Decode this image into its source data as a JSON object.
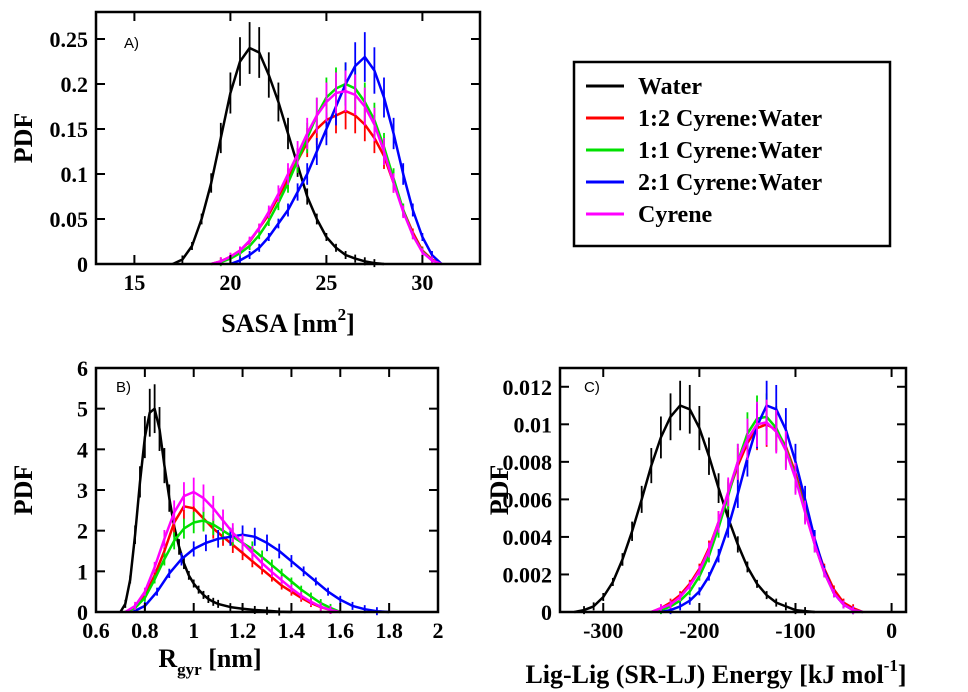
{
  "legend": [
    {
      "label": "Water",
      "color": "#000000"
    },
    {
      "label": "1:2 Cyrene:Water",
      "color": "#ff0000"
    },
    {
      "label": "1:1 Cyrene:Water",
      "color": "#00e000"
    },
    {
      "label": "2:1 Cyrene:Water",
      "color": "#0000ff"
    },
    {
      "label": "Cyrene",
      "color": "#ff00ff"
    }
  ],
  "chart_data": [
    {
      "type": "line",
      "panel_label": "A)",
      "ylabel": "PDF",
      "xlabel": "SASA [nm",
      "xlabel_sup": "2",
      "xlabel_suffix": "]",
      "xlim": [
        13,
        33
      ],
      "ylim": [
        0,
        0.28
      ],
      "xticks": [
        15,
        20,
        25,
        30
      ],
      "xtick_labels": [
        "15",
        "20",
        "25",
        "30"
      ],
      "yticks": [
        0,
        0.05,
        0.1,
        0.15,
        0.2,
        0.25
      ],
      "ytick_labels": [
        "0",
        "0.05",
        "0.1",
        "0.15",
        "0.2",
        "0.25"
      ],
      "series": [
        {
          "name": "Water",
          "color": "#000000",
          "x": [
            17,
            17.5,
            18,
            18.5,
            19,
            19.5,
            20,
            20.5,
            21,
            21.5,
            22,
            22.5,
            23,
            23.5,
            24,
            24.5,
            25,
            25.5,
            26,
            26.5,
            27,
            27.5,
            28
          ],
          "y": [
            0,
            0.005,
            0.02,
            0.05,
            0.09,
            0.14,
            0.19,
            0.225,
            0.24,
            0.235,
            0.21,
            0.18,
            0.145,
            0.11,
            0.075,
            0.05,
            0.03,
            0.018,
            0.01,
            0.006,
            0.003,
            0.001,
            0
          ]
        },
        {
          "name": "1:2 Cyrene:Water",
          "color": "#ff0000",
          "x": [
            19,
            19.5,
            20,
            20.5,
            21,
            21.5,
            22,
            22.5,
            23,
            23.5,
            24,
            24.5,
            25,
            25.5,
            26,
            26.5,
            27,
            27.5,
            28,
            28.5,
            29,
            29.5,
            30,
            30.5,
            31
          ],
          "y": [
            0,
            0.003,
            0.008,
            0.015,
            0.025,
            0.04,
            0.055,
            0.075,
            0.095,
            0.115,
            0.135,
            0.15,
            0.16,
            0.165,
            0.17,
            0.165,
            0.155,
            0.14,
            0.12,
            0.09,
            0.06,
            0.035,
            0.015,
            0.005,
            0
          ]
        },
        {
          "name": "1:1 Cyrene:Water",
          "color": "#00e000",
          "x": [
            19,
            19.5,
            20,
            20.5,
            21,
            21.5,
            22,
            22.5,
            23,
            23.5,
            24,
            24.5,
            25,
            25.5,
            26,
            26.5,
            27,
            27.5,
            28,
            28.5,
            29,
            29.5,
            30,
            30.5,
            31
          ],
          "y": [
            0,
            0.002,
            0.006,
            0.012,
            0.02,
            0.032,
            0.048,
            0.068,
            0.09,
            0.115,
            0.14,
            0.165,
            0.185,
            0.195,
            0.2,
            0.195,
            0.18,
            0.16,
            0.13,
            0.095,
            0.06,
            0.032,
            0.014,
            0.004,
            0
          ]
        },
        {
          "name": "2:1 Cyrene:Water",
          "color": "#0000ff",
          "x": [
            20,
            20.5,
            21,
            21.5,
            22,
            22.5,
            23,
            23.5,
            24,
            24.5,
            25,
            25.5,
            26,
            26.5,
            27,
            27.5,
            28,
            28.5,
            29,
            29.5,
            30,
            30.5,
            31
          ],
          "y": [
            0,
            0.004,
            0.01,
            0.018,
            0.03,
            0.045,
            0.06,
            0.08,
            0.1,
            0.125,
            0.15,
            0.175,
            0.2,
            0.22,
            0.23,
            0.215,
            0.185,
            0.145,
            0.1,
            0.06,
            0.03,
            0.01,
            0
          ]
        },
        {
          "name": "Cyrene",
          "color": "#ff00ff",
          "x": [
            19,
            19.5,
            20,
            20.5,
            21,
            21.5,
            22,
            22.5,
            23,
            23.5,
            24,
            24.5,
            25,
            25.5,
            26,
            26.5,
            27,
            27.5,
            28,
            28.5,
            29,
            29.5,
            30,
            30.5,
            31
          ],
          "y": [
            0,
            0.003,
            0.008,
            0.015,
            0.026,
            0.04,
            0.058,
            0.078,
            0.1,
            0.122,
            0.145,
            0.165,
            0.18,
            0.19,
            0.192,
            0.188,
            0.175,
            0.155,
            0.125,
            0.09,
            0.058,
            0.032,
            0.013,
            0.004,
            0
          ]
        }
      ]
    },
    {
      "type": "line",
      "panel_label": "B)",
      "ylabel": "PDF",
      "xlabel": "R",
      "xlabel_sub": "gyr",
      "xlabel_suffix": " [nm]",
      "xlim": [
        0.6,
        2
      ],
      "ylim": [
        0,
        6
      ],
      "xticks": [
        0.6,
        0.8,
        1.0,
        1.2,
        1.4,
        1.6,
        1.8,
        2.0
      ],
      "xtick_labels": [
        "0.6",
        "0.8",
        "1",
        "1.2",
        "1.4",
        "1.6",
        "1.8",
        "2"
      ],
      "yticks": [
        0,
        1,
        2,
        3,
        4,
        5,
        6
      ],
      "ytick_labels": [
        "0",
        "1",
        "2",
        "3",
        "4",
        "5",
        "6"
      ],
      "series": [
        {
          "name": "Water",
          "color": "#000000",
          "x": [
            0.7,
            0.72,
            0.74,
            0.76,
            0.78,
            0.8,
            0.82,
            0.84,
            0.86,
            0.88,
            0.9,
            0.92,
            0.94,
            0.96,
            0.98,
            1.0,
            1.02,
            1.04,
            1.06,
            1.08,
            1.1,
            1.15,
            1.2,
            1.25,
            1.3,
            1.35,
            1.4
          ],
          "y": [
            0,
            0.2,
            0.8,
            1.9,
            3.2,
            4.3,
            4.9,
            5.0,
            4.5,
            3.6,
            2.8,
            2.1,
            1.6,
            1.2,
            0.9,
            0.7,
            0.55,
            0.42,
            0.32,
            0.25,
            0.2,
            0.12,
            0.08,
            0.05,
            0.03,
            0.01,
            0
          ]
        },
        {
          "name": "1:2 Cyrene:Water",
          "color": "#ff0000",
          "x": [
            0.72,
            0.76,
            0.8,
            0.84,
            0.88,
            0.92,
            0.96,
            1.0,
            1.04,
            1.08,
            1.12,
            1.16,
            1.2,
            1.24,
            1.28,
            1.32,
            1.36,
            1.4,
            1.44,
            1.48,
            1.52,
            1.56,
            1.6
          ],
          "y": [
            0,
            0.1,
            0.4,
            0.9,
            1.5,
            2.2,
            2.6,
            2.55,
            2.3,
            2.05,
            1.85,
            1.65,
            1.45,
            1.25,
            1.05,
            0.85,
            0.65,
            0.5,
            0.35,
            0.22,
            0.12,
            0.05,
            0
          ]
        },
        {
          "name": "1:1 Cyrene:Water",
          "color": "#00e000",
          "x": [
            0.72,
            0.76,
            0.8,
            0.84,
            0.88,
            0.92,
            0.96,
            1.0,
            1.04,
            1.08,
            1.12,
            1.16,
            1.2,
            1.24,
            1.28,
            1.32,
            1.36,
            1.4,
            1.44,
            1.48,
            1.52,
            1.56,
            1.6
          ],
          "y": [
            0,
            0.1,
            0.35,
            0.8,
            1.3,
            1.75,
            2.05,
            2.2,
            2.25,
            2.15,
            2.0,
            1.85,
            1.7,
            1.55,
            1.35,
            1.15,
            0.95,
            0.75,
            0.55,
            0.38,
            0.22,
            0.1,
            0
          ]
        },
        {
          "name": "2:1 Cyrene:Water",
          "color": "#0000ff",
          "x": [
            0.75,
            0.8,
            0.85,
            0.9,
            0.95,
            1.0,
            1.05,
            1.1,
            1.15,
            1.2,
            1.25,
            1.3,
            1.35,
            1.4,
            1.45,
            1.5,
            1.55,
            1.6,
            1.65,
            1.7,
            1.75,
            1.8
          ],
          "y": [
            0,
            0.15,
            0.5,
            0.95,
            1.3,
            1.55,
            1.7,
            1.8,
            1.85,
            1.9,
            1.85,
            1.7,
            1.5,
            1.25,
            1.0,
            0.75,
            0.5,
            0.3,
            0.15,
            0.07,
            0.02,
            0
          ]
        },
        {
          "name": "Cyrene",
          "color": "#ff00ff",
          "x": [
            0.72,
            0.76,
            0.8,
            0.84,
            0.88,
            0.92,
            0.96,
            1.0,
            1.04,
            1.08,
            1.12,
            1.16,
            1.2,
            1.24,
            1.28,
            1.32,
            1.36,
            1.4,
            1.44,
            1.48,
            1.52,
            1.56,
            1.6
          ],
          "y": [
            0,
            0.15,
            0.5,
            1.1,
            1.8,
            2.45,
            2.85,
            2.95,
            2.8,
            2.55,
            2.25,
            1.95,
            1.7,
            1.45,
            1.2,
            0.98,
            0.78,
            0.58,
            0.4,
            0.25,
            0.13,
            0.05,
            0
          ]
        }
      ]
    },
    {
      "type": "line",
      "panel_label": "C)",
      "ylabel": "PDF",
      "xlabel": "Lig-Lig (SR-LJ) Energy [kJ mol",
      "xlabel_sup": "-1",
      "xlabel_suffix": "]",
      "xlim": [
        -345,
        15
      ],
      "ylim": [
        0,
        0.013
      ],
      "xticks": [
        -300,
        -200,
        -100,
        0
      ],
      "xtick_labels": [
        "-300",
        "-200",
        "-100",
        "0"
      ],
      "yticks": [
        0,
        0.002,
        0.004,
        0.006,
        0.008,
        0.01,
        0.012
      ],
      "ytick_labels": [
        "0",
        "0.002",
        "0.004",
        "0.006",
        "0.008",
        "0.01",
        "0.012"
      ],
      "series": [
        {
          "name": "Water",
          "color": "#000000",
          "x": [
            -330,
            -320,
            -310,
            -300,
            -290,
            -280,
            -270,
            -260,
            -250,
            -240,
            -230,
            -220,
            -210,
            -200,
            -190,
            -180,
            -170,
            -160,
            -150,
            -140,
            -130,
            -120,
            -110,
            -100,
            -90,
            -80
          ],
          "y": [
            0,
            0.0001,
            0.0003,
            0.0008,
            0.0016,
            0.0028,
            0.0043,
            0.006,
            0.0078,
            0.0093,
            0.0104,
            0.011,
            0.0108,
            0.0098,
            0.0083,
            0.0066,
            0.005,
            0.0036,
            0.0024,
            0.0015,
            0.0009,
            0.0005,
            0.0003,
            0.0001,
            5e-05,
            0
          ]
        },
        {
          "name": "1:2 Cyrene:Water",
          "color": "#ff0000",
          "x": [
            -250,
            -240,
            -230,
            -220,
            -210,
            -200,
            -190,
            -180,
            -170,
            -160,
            -150,
            -140,
            -130,
            -120,
            -110,
            -100,
            -90,
            -80,
            -70,
            -60,
            -50,
            -40,
            -30
          ],
          "y": [
            0,
            0.0002,
            0.0005,
            0.0009,
            0.0015,
            0.0023,
            0.0034,
            0.0048,
            0.0063,
            0.0078,
            0.009,
            0.0098,
            0.01,
            0.0097,
            0.0088,
            0.0074,
            0.0056,
            0.0038,
            0.0023,
            0.0012,
            0.0005,
            0.0002,
            0
          ]
        },
        {
          "name": "1:1 Cyrene:Water",
          "color": "#00e000",
          "x": [
            -250,
            -240,
            -230,
            -220,
            -210,
            -200,
            -190,
            -180,
            -170,
            -160,
            -150,
            -140,
            -130,
            -120,
            -110,
            -100,
            -90,
            -80,
            -70,
            -60,
            -50,
            -40,
            -30
          ],
          "y": [
            0,
            0.0001,
            0.0003,
            0.0006,
            0.0011,
            0.0019,
            0.003,
            0.0045,
            0.0062,
            0.008,
            0.0095,
            0.0103,
            0.0104,
            0.0098,
            0.0087,
            0.0072,
            0.0054,
            0.0036,
            0.0021,
            0.001,
            0.0004,
            0.0001,
            0
          ]
        },
        {
          "name": "2:1 Cyrene:Water",
          "color": "#0000ff",
          "x": [
            -240,
            -230,
            -220,
            -210,
            -200,
            -190,
            -180,
            -170,
            -160,
            -150,
            -140,
            -130,
            -120,
            -110,
            -100,
            -90,
            -80,
            -70,
            -60,
            -50,
            -40,
            -30
          ],
          "y": [
            0,
            0.0001,
            0.0003,
            0.0006,
            0.0011,
            0.0019,
            0.003,
            0.0045,
            0.0063,
            0.0082,
            0.0099,
            0.011,
            0.0108,
            0.0097,
            0.008,
            0.006,
            0.0039,
            0.0022,
            0.001,
            0.0004,
            0.0001,
            0
          ]
        },
        {
          "name": "Cyrene",
          "color": "#ff00ff",
          "x": [
            -250,
            -240,
            -230,
            -220,
            -210,
            -200,
            -190,
            -180,
            -170,
            -160,
            -150,
            -140,
            -130,
            -120,
            -110,
            -100,
            -90,
            -80,
            -70,
            -60,
            -50,
            -40,
            -30
          ],
          "y": [
            0,
            0.0002,
            0.0004,
            0.0008,
            0.0014,
            0.0022,
            0.0033,
            0.0048,
            0.0064,
            0.008,
            0.0092,
            0.01,
            0.0101,
            0.0096,
            0.0086,
            0.0071,
            0.0053,
            0.0036,
            0.0021,
            0.001,
            0.0004,
            0.0001,
            0
          ]
        }
      ]
    }
  ]
}
